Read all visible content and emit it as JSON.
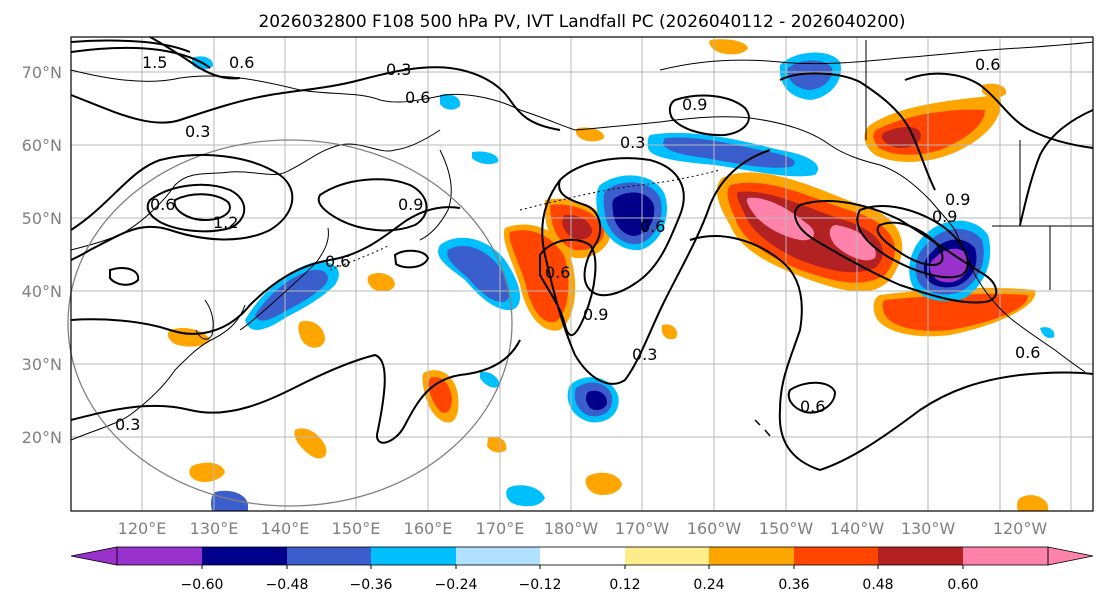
{
  "title": "2026032800 F108 500 hPa PV, IVT Landfall PC (2026040112 - 2026040200)",
  "lat_labels": [
    "70°N",
    "60°N",
    "50°N",
    "40°N",
    "30°N",
    "20°N"
  ],
  "lon_labels": [
    "120°E",
    "130°E",
    "140°E",
    "150°E",
    "160°E",
    "170°E",
    "180°W",
    "170°W",
    "160°W",
    "150°W",
    "140°W",
    "130°W",
    "120°W"
  ],
  "contour_labels": [
    "0.6",
    "0.3",
    "0.6",
    "0.9",
    "0.3",
    "0.3",
    "0.6",
    "0.9",
    "0.6",
    "0.9",
    "1.2",
    "0.6",
    "0.9",
    "0.6",
    "0.9",
    "0.3",
    "0.6",
    "0.6",
    "0.3",
    "1.5",
    "0.6"
  ],
  "colorbar": {
    "ticks": [
      "−0.60",
      "−0.48",
      "−0.36",
      "−0.24",
      "−0.12",
      "0.12",
      "0.24",
      "0.36",
      "0.48",
      "0.60"
    ],
    "colors": [
      "#9932cc",
      "#00008b",
      "#3a5fcd",
      "#00bfff",
      "#b0e2ff",
      "#ffffff",
      "#ffec8b",
      "#ffa500",
      "#ff4500",
      "#b22222",
      "#ff82ab"
    ]
  }
}
